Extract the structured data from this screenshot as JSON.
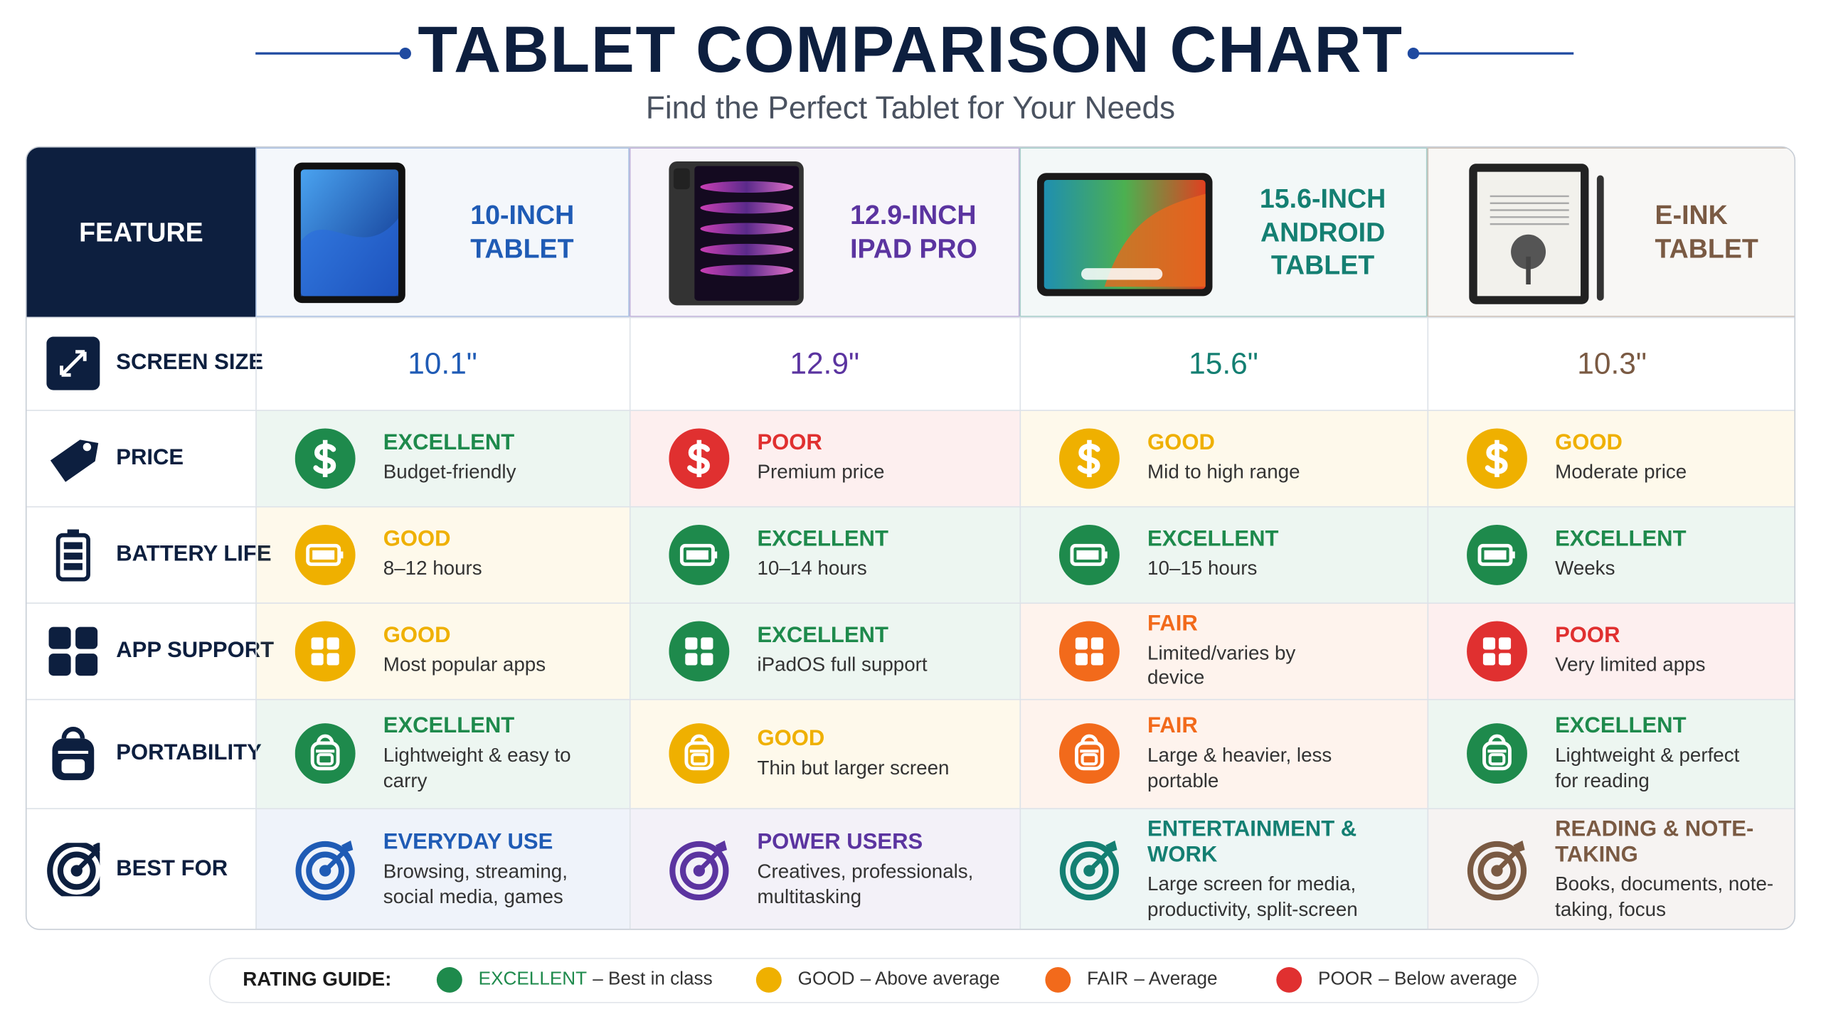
{
  "header": {
    "title": "TABLET COMPARISON CHART",
    "subtitle": "Find the Perfect Tablet for Your Needs"
  },
  "table": {
    "corner": "FEATURE",
    "columns": [
      {
        "name": "10-INCH TABLET",
        "color": "#1f5bb5"
      },
      {
        "name": "12.9-INCH IPAD PRO",
        "color": "#5b34a0"
      },
      {
        "name": "15.6-INCH ANDROID TABLET",
        "color": "#147f72"
      },
      {
        "name": "E-INK TABLET",
        "color": "#7a5a43"
      }
    ],
    "rows": [
      {
        "label": "SCREEN SIZE",
        "cells": [
          "10.1\"",
          "12.9\"",
          "15.6\"",
          "10.3\""
        ]
      },
      {
        "label": "PRICE",
        "cells": [
          {
            "rating": "EXCELLENT",
            "detail": "Budget-friendly"
          },
          {
            "rating": "POOR",
            "detail": "Premium price"
          },
          {
            "rating": "GOOD",
            "detail": "Mid to high range"
          },
          {
            "rating": "GOOD",
            "detail": "Moderate price"
          }
        ]
      },
      {
        "label": "BATTERY LIFE",
        "cells": [
          {
            "rating": "GOOD",
            "detail": "8–12 hours"
          },
          {
            "rating": "EXCELLENT",
            "detail": "10–14 hours"
          },
          {
            "rating": "EXCELLENT",
            "detail": "10–15 hours"
          },
          {
            "rating": "EXCELLENT",
            "detail": "Weeks"
          }
        ]
      },
      {
        "label": "APP SUPPORT",
        "cells": [
          {
            "rating": "GOOD",
            "detail": "Most popular apps"
          },
          {
            "rating": "EXCELLENT",
            "detail": "iPadOS full support"
          },
          {
            "rating": "FAIR",
            "detail": "Limited/varies by device"
          },
          {
            "rating": "POOR",
            "detail": "Very limited apps"
          }
        ]
      },
      {
        "label": "PORTABILITY",
        "cells": [
          {
            "rating": "EXCELLENT",
            "detail": "Lightweight & easy to carry"
          },
          {
            "rating": "GOOD",
            "detail": "Thin but larger screen"
          },
          {
            "rating": "FAIR",
            "detail": "Large & heavier, less portable"
          },
          {
            "rating": "EXCELLENT",
            "detail": "Lightweight & perfect for reading"
          }
        ]
      },
      {
        "label": "BEST FOR",
        "cells": [
          {
            "rating": "EVERYDAY USE",
            "detail": "Browsing, streaming, social media, games"
          },
          {
            "rating": "POWER USERS",
            "detail": "Creatives, professionals, multitasking"
          },
          {
            "rating": "ENTERTAINMENT & WORK",
            "detail": "Large screen for media, productivity, split-screen"
          },
          {
            "rating": "READING & NOTE-TAKING",
            "detail": "Books, documents, note-taking, focus"
          }
        ]
      }
    ]
  },
  "legend": {
    "title": "RATING GUIDE:",
    "items": [
      {
        "rating": "EXCELLENT",
        "note": "– Best in class",
        "color": "#1e8a4c"
      },
      {
        "rating": "GOOD",
        "note": "– Above average",
        "color": "#efb000"
      },
      {
        "rating": "FAIR",
        "note": "– Average",
        "color": "#f26a1b"
      },
      {
        "rating": "POOR",
        "note": "– Below average",
        "color": "#e03030"
      }
    ]
  }
}
